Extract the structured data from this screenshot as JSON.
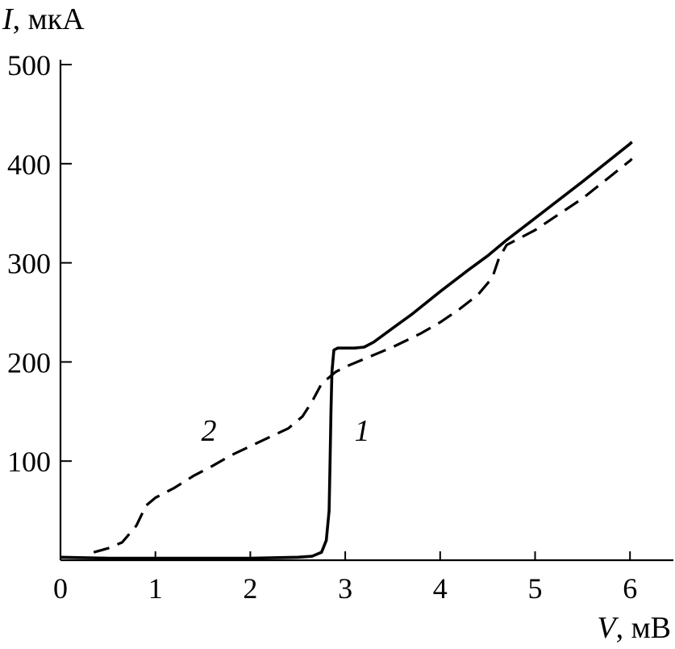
{
  "chart_data": {
    "type": "line",
    "xlabel_var": "V",
    "xlabel_unit": ", мВ",
    "ylabel_var": "I",
    "ylabel_unit": ", мкА",
    "xlim": [
      0,
      6.45
    ],
    "ylim": [
      0,
      500
    ],
    "x_ticks": [
      0,
      1,
      2,
      3,
      4,
      5,
      6
    ],
    "x_tick_labels": [
      "0",
      "1",
      "2",
      "3",
      "4",
      "5",
      "6"
    ],
    "y_ticks": [
      100,
      200,
      300,
      400,
      500
    ],
    "y_tick_labels": [
      "100",
      "200",
      "300",
      "400",
      "500"
    ],
    "grid": false,
    "series": [
      {
        "name": "1",
        "style": "solid",
        "points": [
          [
            0,
            3
          ],
          [
            0.5,
            2
          ],
          [
            1.0,
            2
          ],
          [
            1.5,
            2
          ],
          [
            2.0,
            2
          ],
          [
            2.5,
            3
          ],
          [
            2.65,
            4
          ],
          [
            2.75,
            8
          ],
          [
            2.8,
            20
          ],
          [
            2.83,
            50
          ],
          [
            2.84,
            100
          ],
          [
            2.85,
            150
          ],
          [
            2.86,
            190
          ],
          [
            2.88,
            212
          ],
          [
            2.92,
            214
          ],
          [
            3.0,
            214
          ],
          [
            3.1,
            214
          ],
          [
            3.2,
            215
          ],
          [
            3.3,
            220
          ],
          [
            3.5,
            234
          ],
          [
            3.7,
            248
          ],
          [
            4.0,
            271
          ],
          [
            4.3,
            293
          ],
          [
            4.5,
            307
          ],
          [
            4.7,
            323
          ],
          [
            5.0,
            345
          ],
          [
            5.5,
            382
          ],
          [
            6.0,
            420
          ],
          [
            6.02,
            422
          ]
        ]
      },
      {
        "name": "2",
        "style": "dashed",
        "points": [
          [
            0.35,
            8
          ],
          [
            0.5,
            12
          ],
          [
            0.65,
            18
          ],
          [
            0.8,
            35
          ],
          [
            0.9,
            55
          ],
          [
            1.0,
            63
          ],
          [
            1.2,
            73
          ],
          [
            1.4,
            85
          ],
          [
            1.6,
            95
          ],
          [
            1.8,
            106
          ],
          [
            2.0,
            115
          ],
          [
            2.2,
            124
          ],
          [
            2.4,
            133
          ],
          [
            2.55,
            145
          ],
          [
            2.65,
            160
          ],
          [
            2.75,
            178
          ],
          [
            2.9,
            190
          ],
          [
            3.0,
            195
          ],
          [
            3.2,
            203
          ],
          [
            3.5,
            215
          ],
          [
            3.8,
            229
          ],
          [
            4.0,
            240
          ],
          [
            4.2,
            253
          ],
          [
            4.4,
            268
          ],
          [
            4.55,
            285
          ],
          [
            4.62,
            305
          ],
          [
            4.7,
            318
          ],
          [
            5.0,
            333
          ],
          [
            5.5,
            365
          ],
          [
            6.0,
            403
          ],
          [
            6.02,
            405
          ]
        ]
      }
    ]
  }
}
